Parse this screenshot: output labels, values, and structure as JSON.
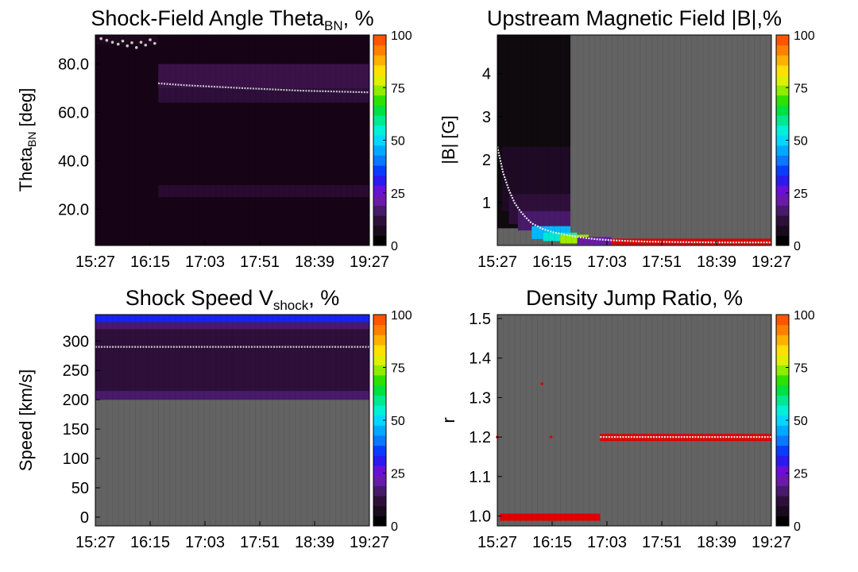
{
  "colorbar": {
    "ticks": [
      "0",
      "25",
      "50",
      "75",
      "100"
    ],
    "colors": [
      "#000000",
      "#1a0a1e",
      "#2e0f3a",
      "#481a6a",
      "#6a1aa8",
      "#6a0fd6",
      "#2a1af0",
      "#0a3cff",
      "#0a78ff",
      "#00a8ff",
      "#00d8ff",
      "#00f0d8",
      "#00e890",
      "#00e040",
      "#30e000",
      "#90ec00",
      "#e0f000",
      "#ffe000",
      "#ffb000",
      "#ff8000",
      "#ff5500"
    ]
  },
  "chart_data": [
    {
      "type": "heatmap",
      "title_main": "Shock-Field Angle Theta",
      "title_sub": "BN",
      "title_tail": ", %",
      "ylabel_main": "Theta",
      "ylabel_sub": "BN",
      "ylabel_tail": " [deg]",
      "xticks": [
        "15:27",
        "16:15",
        "17:03",
        "17:51",
        "18:39",
        "19:27"
      ],
      "yticks": [
        {
          "value": 20,
          "label": "20.0"
        },
        {
          "value": 40,
          "label": "40.0"
        },
        {
          "value": 60,
          "label": "60.0"
        },
        {
          "value": 80,
          "label": "80.0"
        }
      ],
      "ylim": [
        5,
        92
      ],
      "xlim": [
        0,
        240
      ],
      "background": "#120012",
      "bands": [
        {
          "x0": 0,
          "x1": 240,
          "y0": 5,
          "y1": 92,
          "color": "#160416"
        },
        {
          "x0": 55,
          "x1": 240,
          "y0": 25,
          "y1": 30,
          "color": "#2a0a30"
        },
        {
          "x0": 55,
          "x1": 240,
          "y0": 64,
          "y1": 74,
          "color": "#2e0e3a"
        },
        {
          "x0": 55,
          "x1": 240,
          "y0": 70,
          "y1": 80,
          "color": "#3a1248"
        },
        {
          "x0": 0,
          "x1": 55,
          "y0": 88,
          "y1": 92,
          "color": "#1e081e"
        }
      ],
      "line": {
        "x": [
          55,
          80,
          105,
          130,
          155,
          180,
          205,
          230,
          240
        ],
        "y": [
          72.0,
          71.2,
          70.6,
          70.0,
          69.5,
          69.0,
          68.7,
          68.4,
          68.3
        ],
        "color": "#c8c8c8"
      },
      "scatter": {
        "x": [
          5,
          10,
          15,
          20,
          24,
          28,
          32,
          36,
          40,
          44,
          48,
          52
        ],
        "y": [
          90.5,
          89.8,
          89.0,
          88.2,
          89.5,
          87.5,
          88.8,
          86.8,
          89.0,
          87.8,
          90.0,
          88.5
        ],
        "color": "#c8c8c8"
      }
    },
    {
      "type": "heatmap",
      "title_main": "Upstream Magnetic Field |B|,%",
      "title_sub": "",
      "title_tail": "",
      "ylabel_main": "|B| [G]",
      "ylabel_sub": "",
      "ylabel_tail": "",
      "xticks": [
        "15:27",
        "16:15",
        "17:03",
        "17:51",
        "18:39",
        "19:27"
      ],
      "yticks": [
        {
          "value": 1,
          "label": "1"
        },
        {
          "value": 2,
          "label": "2"
        },
        {
          "value": 3,
          "label": "3"
        },
        {
          "value": 4,
          "label": "4"
        }
      ],
      "ylim": [
        0,
        4.9
      ],
      "xlim": [
        0,
        240
      ],
      "background": "#636363",
      "bands": [
        {
          "x0": 0,
          "x1": 64,
          "y0": 0.4,
          "y1": 4.9,
          "color": "#0e0a0e"
        },
        {
          "x0": 4,
          "x1": 64,
          "y0": 0.8,
          "y1": 2.3,
          "color": "#1e0a24"
        },
        {
          "x0": 10,
          "x1": 64,
          "y0": 0.5,
          "y1": 1.2,
          "color": "#2e0f3a"
        },
        {
          "x0": 18,
          "x1": 64,
          "y0": 0.35,
          "y1": 0.8,
          "color": "#481a6a"
        },
        {
          "x0": 30,
          "x1": 64,
          "y0": 0.15,
          "y1": 0.45,
          "color": "#00b8ff"
        },
        {
          "x0": 40,
          "x1": 70,
          "y0": 0.1,
          "y1": 0.3,
          "color": "#00e8d0"
        },
        {
          "x0": 55,
          "x1": 80,
          "y0": 0.05,
          "y1": 0.25,
          "color": "#a0ec00"
        },
        {
          "x0": 70,
          "x1": 100,
          "y0": 0.02,
          "y1": 0.2,
          "color": "#6a1aa8"
        },
        {
          "x0": 100,
          "x1": 240,
          "y0": 0.02,
          "y1": 0.16,
          "color": "#e00000"
        }
      ],
      "line": {
        "x": [
          0,
          5,
          10,
          15,
          20,
          25,
          30,
          40,
          50,
          60,
          70,
          85,
          100,
          130,
          160,
          200,
          240
        ],
        "y": [
          2.3,
          1.7,
          1.3,
          1.0,
          0.8,
          0.65,
          0.52,
          0.38,
          0.3,
          0.25,
          0.2,
          0.15,
          0.12,
          0.09,
          0.08,
          0.07,
          0.07
        ],
        "color": "#e8e8e8"
      },
      "scatter": {
        "x": [],
        "y": [],
        "color": "#e8e8e8"
      }
    },
    {
      "type": "heatmap",
      "title_main": "Shock Speed V",
      "title_sub": "shock",
      "title_tail": ", %",
      "ylabel_main": "Speed [km/s]",
      "ylabel_sub": "",
      "ylabel_tail": "",
      "xticks": [
        "15:27",
        "16:15",
        "17:03",
        "17:51",
        "18:39",
        "19:27"
      ],
      "yticks": [
        {
          "value": 0,
          "label": "0"
        },
        {
          "value": 50,
          "label": "50"
        },
        {
          "value": 100,
          "label": "100"
        },
        {
          "value": 150,
          "label": "150"
        },
        {
          "value": 200,
          "label": "200"
        },
        {
          "value": 250,
          "label": "250"
        },
        {
          "value": 300,
          "label": "300"
        }
      ],
      "ylim": [
        -15,
        345
      ],
      "xlim": [
        0,
        240
      ],
      "background": "#636363",
      "bands": [
        {
          "x0": 0,
          "x1": 240,
          "y0": 200,
          "y1": 345,
          "color": "#2e0f3a"
        },
        {
          "x0": 0,
          "x1": 240,
          "y0": 200,
          "y1": 215,
          "color": "#481a6a"
        },
        {
          "x0": 0,
          "x1": 240,
          "y0": 320,
          "y1": 332,
          "color": "#481a6a"
        },
        {
          "x0": 0,
          "x1": 240,
          "y0": 332,
          "y1": 345,
          "color": "#1a22f0"
        }
      ],
      "line": {
        "x": [
          0,
          240
        ],
        "y": [
          290,
          290
        ],
        "color": "#c8c8c8"
      },
      "scatter": {
        "x": [],
        "y": [],
        "color": "#c8c8c8"
      }
    },
    {
      "type": "heatmap",
      "title_main": "Density Jump Ratio, %",
      "title_sub": "",
      "title_tail": "",
      "ylabel_main": "r",
      "ylabel_sub": "",
      "ylabel_tail": "",
      "xticks": [
        "15:27",
        "16:15",
        "17:03",
        "17:51",
        "18:39",
        "19:27"
      ],
      "yticks": [
        {
          "value": 1.0,
          "label": "1.0"
        },
        {
          "value": 1.1,
          "label": "1.1"
        },
        {
          "value": 1.2,
          "label": "1.2"
        },
        {
          "value": 1.3,
          "label": "1.3"
        },
        {
          "value": 1.4,
          "label": "1.4"
        },
        {
          "value": 1.5,
          "label": "1.5"
        }
      ],
      "ylim": [
        0.975,
        1.51
      ],
      "xlim": [
        0,
        240
      ],
      "background": "#636363",
      "bands": [
        {
          "x0": 2,
          "x1": 90,
          "y0": 0.988,
          "y1": 1.006,
          "color": "#e00000"
        },
        {
          "x0": 90,
          "x1": 240,
          "y0": 1.19,
          "y1": 1.208,
          "color": "#e00000"
        }
      ],
      "line": {
        "x": [
          90,
          240
        ],
        "y": [
          1.2,
          1.2
        ],
        "color": "#e8e8e8"
      },
      "scatter": {
        "x": [
          0,
          39,
          47
        ],
        "y": [
          1.2,
          1.335,
          1.2
        ],
        "color": "#e00000"
      }
    }
  ]
}
